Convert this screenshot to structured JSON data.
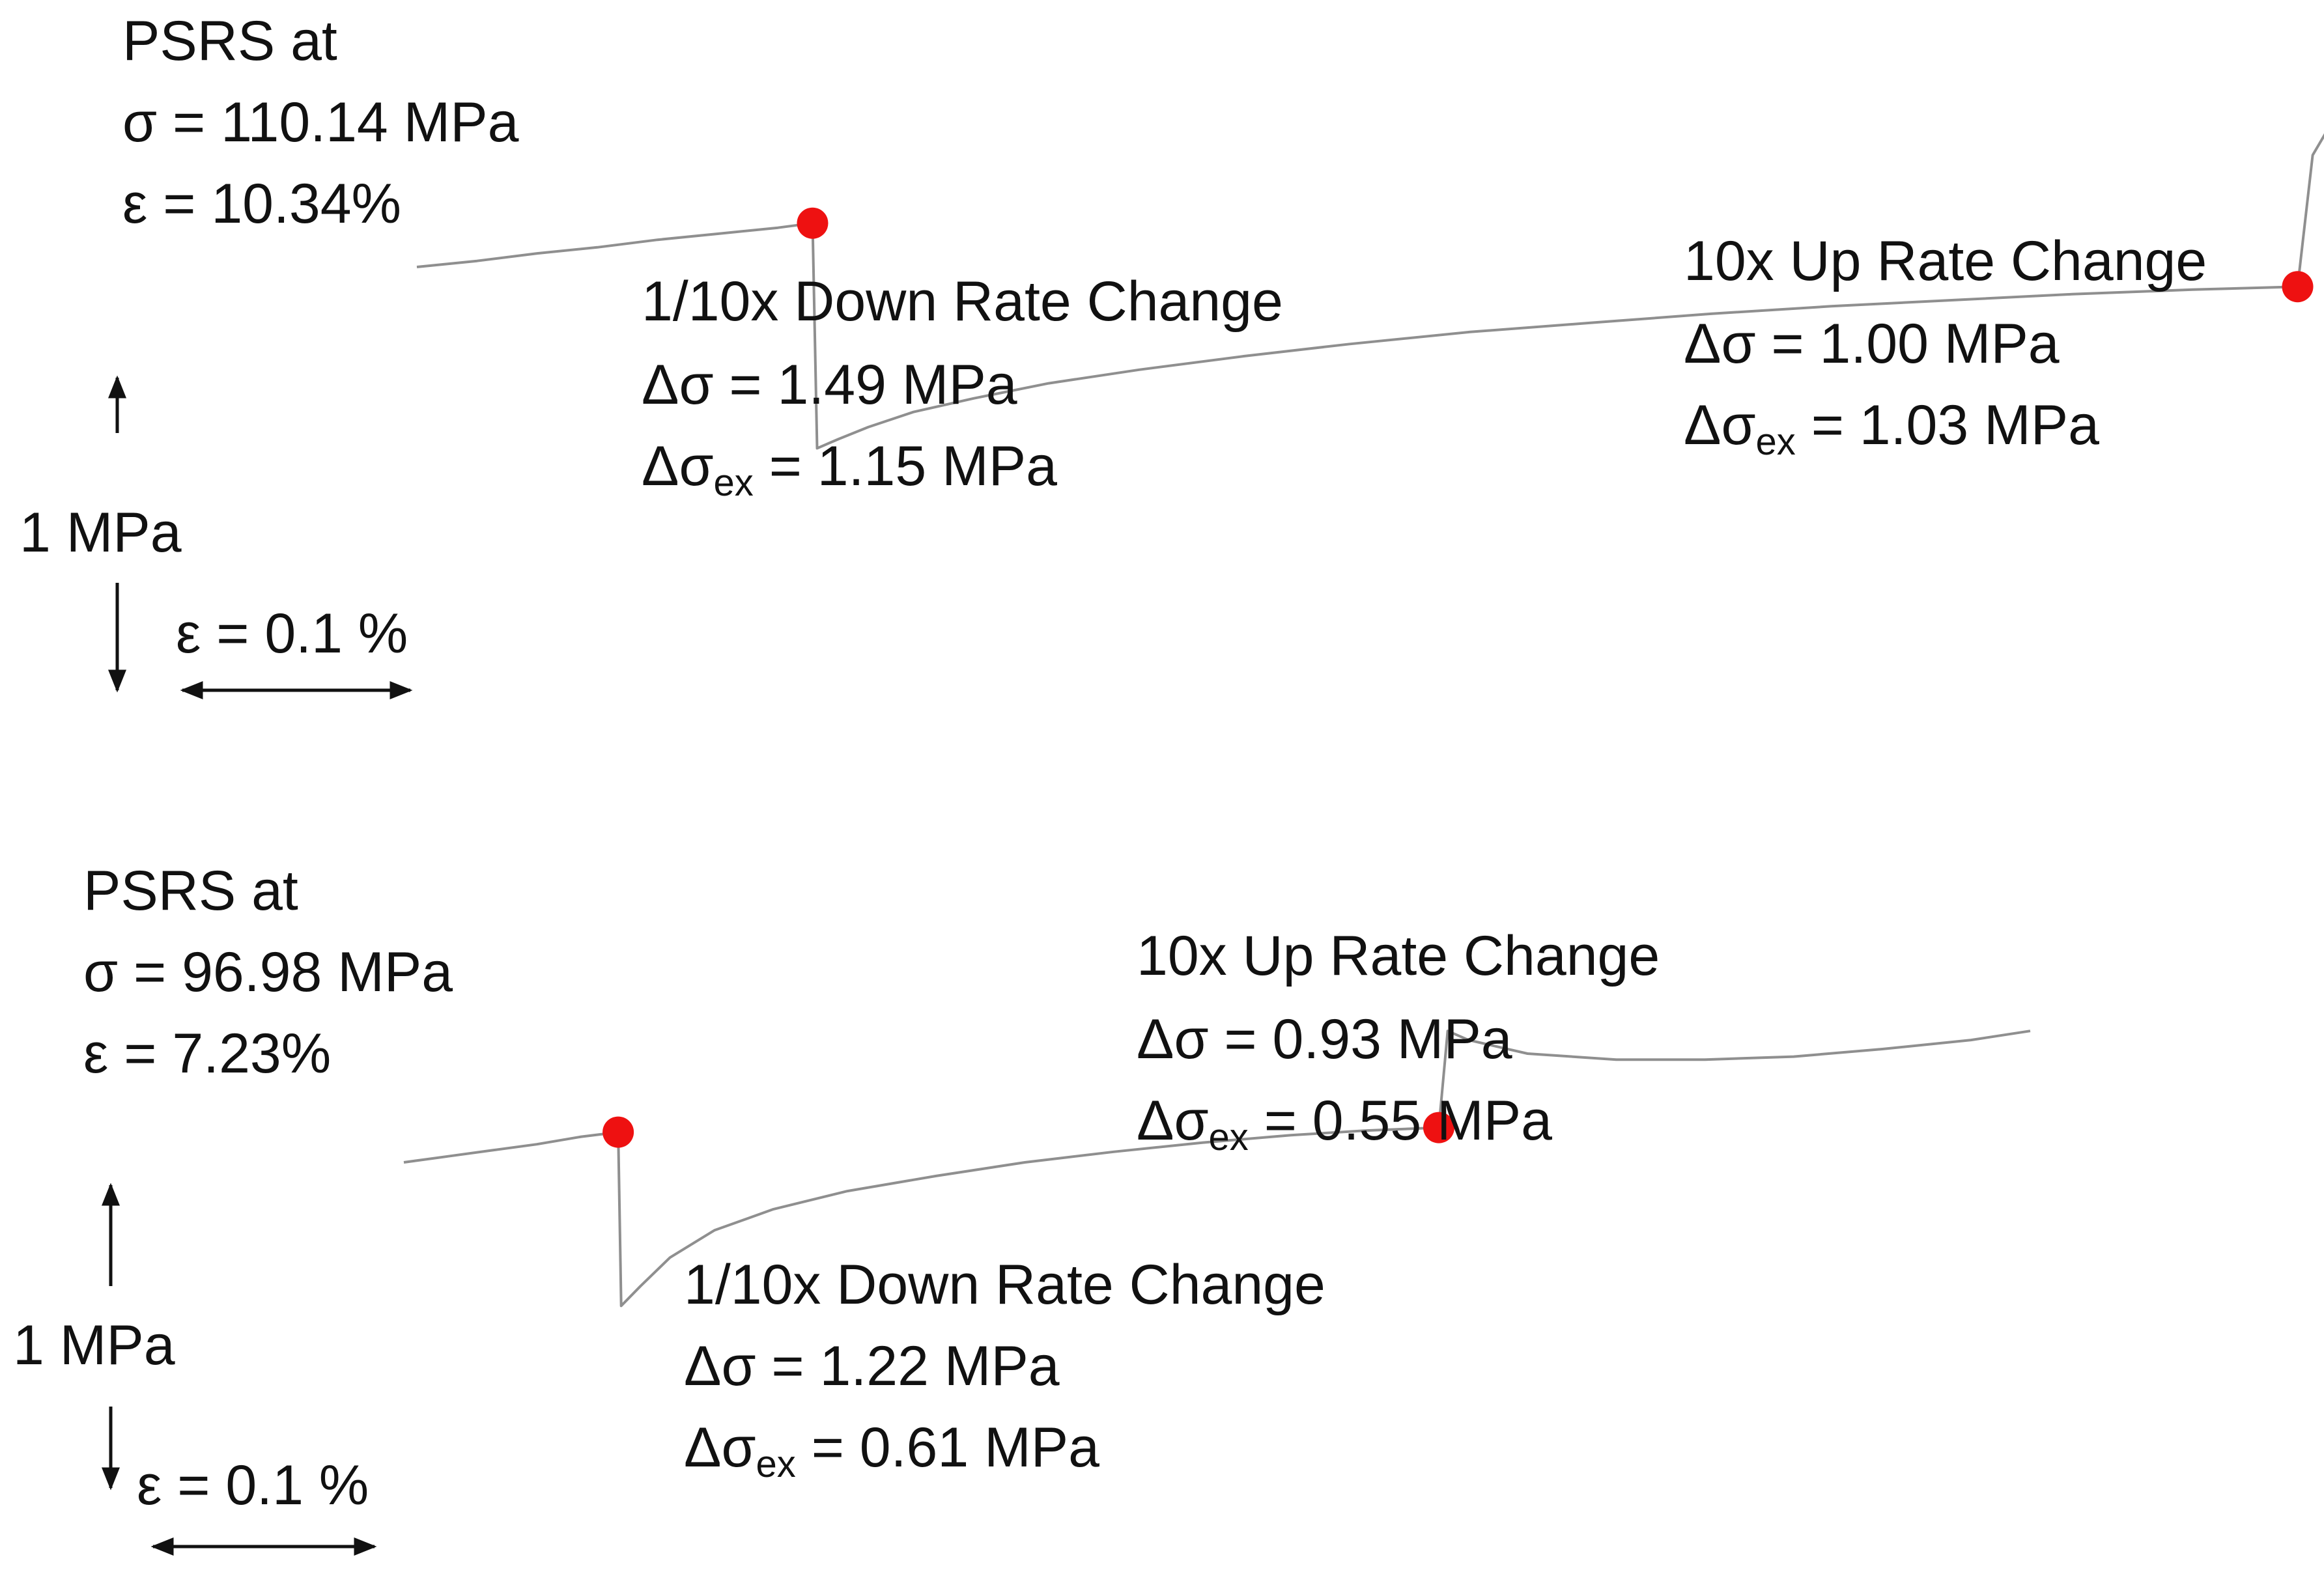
{
  "chart_data": [
    {
      "type": "line",
      "title": "",
      "psrs": {
        "heading": "PSRS at",
        "sigma": "σ = 110.14 MPa",
        "epsilon": "ε = 10.34%"
      },
      "scale": {
        "stress": "1 MPa",
        "strain": "ε = 0.1 %"
      },
      "rate_changes": [
        {
          "label": "1/10x Down Rate Change",
          "delta_sigma": "Δσ = 1.49 MPa",
          "delta_sigma_ex_prefix": "Δσ",
          "delta_sigma_ex_sub": "ex",
          "delta_sigma_ex_value": " = 1.15 MPa"
        },
        {
          "label": "10x Up Rate Change",
          "delta_sigma": "Δσ = 1.00 MPa",
          "delta_sigma_ex_prefix": "Δσ",
          "delta_sigma_ex_sub": "ex",
          "delta_sigma_ex_value": " = 1.03 MPa"
        }
      ],
      "series": [
        {
          "x": [
            0.0,
            0.04,
            0.08,
            0.12,
            0.16,
            0.2,
            0.24,
            0.263
          ],
          "y": [
            0.0,
            0.04,
            0.09,
            0.13,
            0.18,
            0.22,
            0.26,
            0.29
          ]
        },
        {
          "x": [
            0.263,
            0.266,
            0.28,
            0.3,
            0.33,
            0.37,
            0.42,
            0.48,
            0.55,
            0.62,
            0.7,
            0.78,
            0.86,
            0.94,
            1.02,
            1.1,
            1.18,
            1.25
          ],
          "y": [
            0.29,
            -1.2,
            -1.14,
            -1.06,
            -0.96,
            -0.87,
            -0.77,
            -0.68,
            -0.59,
            -0.51,
            -0.43,
            -0.37,
            -0.31,
            -0.26,
            -0.22,
            -0.18,
            -0.15,
            -0.13
          ]
        },
        {
          "x": [
            1.25,
            1.26,
            1.27,
            1.3,
            1.34,
            1.4,
            1.47,
            1.55,
            1.63,
            1.7
          ],
          "y": [
            -0.13,
            0.74,
            0.91,
            0.97,
            0.99,
            1.02,
            1.05,
            1.07,
            1.1,
            1.14
          ]
        }
      ],
      "markers": [
        {
          "x": 0.263,
          "y": 0.29
        },
        {
          "x": 1.25,
          "y": -0.13
        }
      ],
      "colors": {
        "line": "#8f8f8f",
        "marker": "#ee1111",
        "text": "#111111"
      }
    },
    {
      "type": "line",
      "title": "",
      "psrs": {
        "heading": "PSRS at",
        "sigma": "σ = 96.98 MPa",
        "epsilon": "ε = 7.23%"
      },
      "scale": {
        "stress": "1 MPa",
        "strain": "ε = 0.1 %"
      },
      "rate_changes": [
        {
          "label": "1/10x Down Rate Change",
          "delta_sigma": "Δσ = 1.22 MPa",
          "delta_sigma_ex_prefix": "Δσ",
          "delta_sigma_ex_sub": "ex",
          "delta_sigma_ex_value": " = 0.61 MPa"
        },
        {
          "label": "10x Up Rate Change",
          "delta_sigma": "Δσ = 0.93 MPa",
          "delta_sigma_ex_prefix": "Δσ",
          "delta_sigma_ex_sub": "ex",
          "delta_sigma_ex_value": " = 0.55 MPa"
        }
      ],
      "series": [
        {
          "x": [
            0.0,
            0.03,
            0.06,
            0.09,
            0.12,
            0.145
          ],
          "y": [
            0.0,
            0.04,
            0.08,
            0.12,
            0.17,
            0.2
          ]
        },
        {
          "x": [
            0.145,
            0.147,
            0.16,
            0.18,
            0.21,
            0.25,
            0.3,
            0.36,
            0.42,
            0.48,
            0.54,
            0.6,
            0.65,
            0.7
          ],
          "y": [
            0.2,
            -0.95,
            -0.82,
            -0.63,
            -0.45,
            -0.31,
            -0.19,
            -0.09,
            0.0,
            0.07,
            0.13,
            0.18,
            0.21,
            0.23
          ]
        },
        {
          "x": [
            0.7,
            0.706,
            0.72,
            0.76,
            0.82,
            0.88,
            0.94,
            1.0,
            1.06,
            1.1
          ],
          "y": [
            0.23,
            0.87,
            0.81,
            0.72,
            0.68,
            0.68,
            0.7,
            0.75,
            0.81,
            0.87
          ]
        }
      ],
      "markers": [
        {
          "x": 0.145,
          "y": 0.2
        },
        {
          "x": 0.7,
          "y": 0.23
        }
      ],
      "colors": {
        "line": "#8f8f8f",
        "marker": "#ee1111",
        "text": "#111111"
      }
    }
  ]
}
